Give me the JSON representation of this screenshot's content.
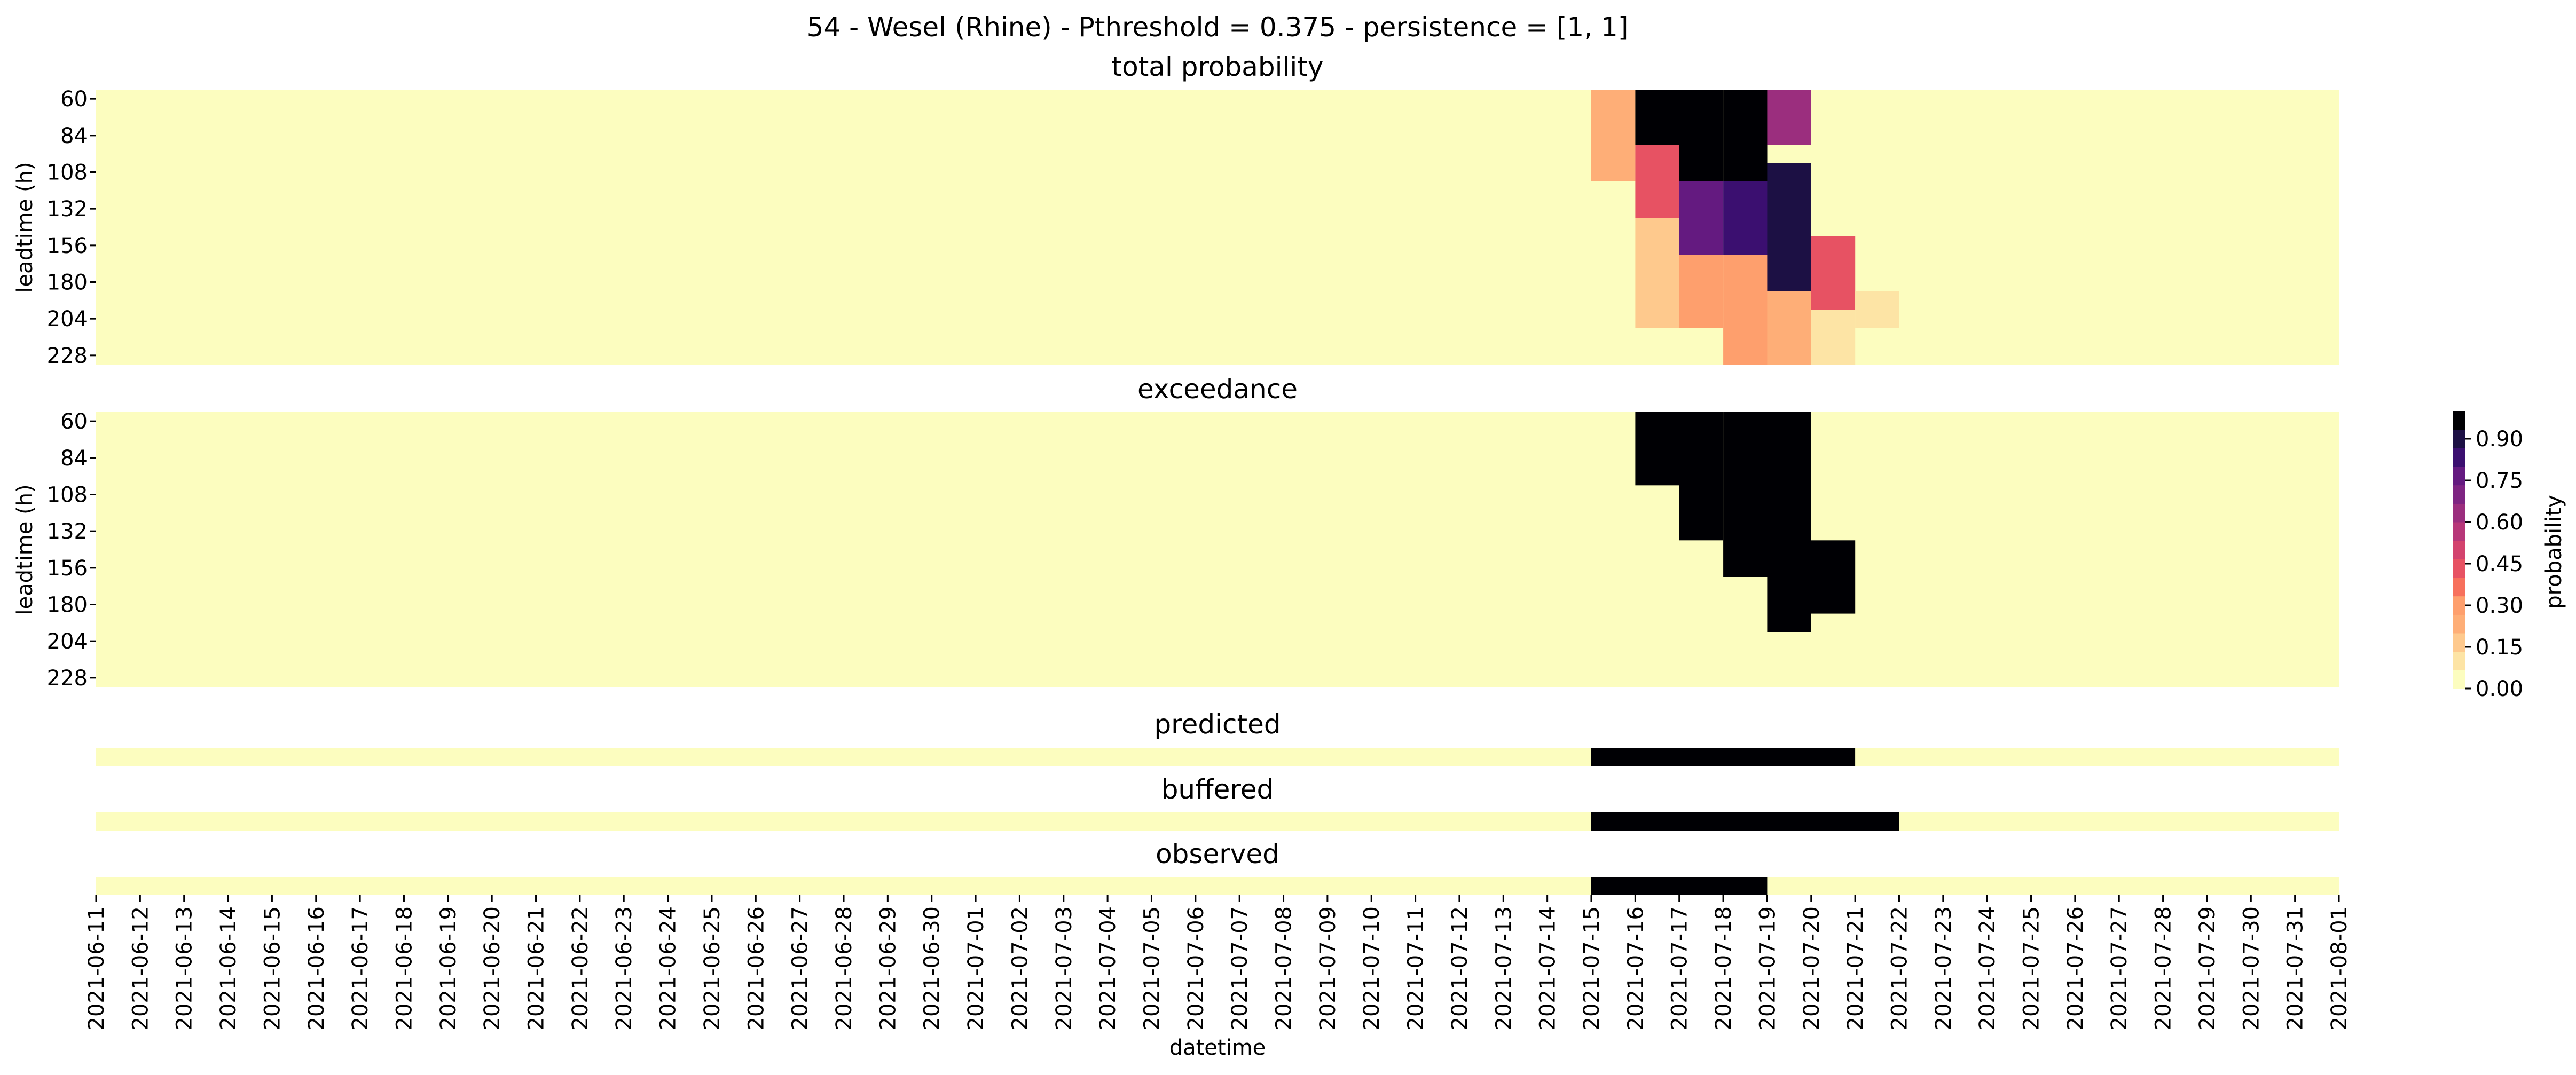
{
  "figure": {
    "suptitle": "54 - Wesel (Rhine) - Pthreshold = 0.375 - persistence = [1, 1]",
    "xlabel": "datetime",
    "ylabel": "leadtime (h)",
    "x_ticks": [
      "2021-06-11",
      "2021-06-12",
      "2021-06-13",
      "2021-06-14",
      "2021-06-15",
      "2021-06-16",
      "2021-06-17",
      "2021-06-18",
      "2021-06-19",
      "2021-06-20",
      "2021-06-21",
      "2021-06-22",
      "2021-06-23",
      "2021-06-24",
      "2021-06-25",
      "2021-06-26",
      "2021-06-27",
      "2021-06-28",
      "2021-06-29",
      "2021-06-30",
      "2021-07-01",
      "2021-07-02",
      "2021-07-03",
      "2021-07-04",
      "2021-07-05",
      "2021-07-06",
      "2021-07-07",
      "2021-07-08",
      "2021-07-09",
      "2021-07-10",
      "2021-07-11",
      "2021-07-12",
      "2021-07-13",
      "2021-07-14",
      "2021-07-15",
      "2021-07-16",
      "2021-07-17",
      "2021-07-18",
      "2021-07-19",
      "2021-07-20",
      "2021-07-21",
      "2021-07-22",
      "2021-07-23",
      "2021-07-24",
      "2021-07-25",
      "2021-07-26",
      "2021-07-27",
      "2021-07-28",
      "2021-07-29",
      "2021-07-30",
      "2021-07-31",
      "2021-08-01"
    ],
    "y_ticks": [
      "60",
      "84",
      "108",
      "132",
      "156",
      "180",
      "204",
      "228"
    ],
    "colorbar": {
      "label": "probability",
      "ticks": [
        "0.00",
        "0.15",
        "0.30",
        "0.45",
        "0.60",
        "0.75",
        "0.90"
      ],
      "tick_values": [
        0.0,
        0.15,
        0.3,
        0.45,
        0.6,
        0.75,
        0.9
      ],
      "range": [
        0,
        1
      ],
      "levels": 15,
      "colors": [
        "#fcfdbf",
        "#fde4a5",
        "#fec98d",
        "#feae77",
        "#fe9f6d",
        "#f7705c",
        "#e75263",
        "#d3436e",
        "#b73779",
        "#9b2e7e",
        "#7e2482",
        "#641a80",
        "#3b0f70",
        "#1c1044",
        "#000004"
      ]
    }
  },
  "chart_data": [
    {
      "type": "heatmap",
      "title": "total probability",
      "x_range": [
        "2021-06-11",
        "2021-08-01"
      ],
      "y_range": [
        60,
        240
      ],
      "regions": [
        {
          "date": "2021-07-15",
          "leadtimes": [
            60,
            108
          ],
          "level": 0.25
        },
        {
          "date": "2021-07-16",
          "leadtimes": [
            60,
            84
          ],
          "level": 0.95
        },
        {
          "date": "2021-07-16",
          "leadtimes": [
            96,
            132
          ],
          "level": 0.4
        },
        {
          "date": "2021-07-16",
          "leadtimes": [
            144,
            204
          ],
          "level": 0.15
        },
        {
          "date": "2021-07-17",
          "leadtimes": [
            60,
            108
          ],
          "level": 0.95
        },
        {
          "date": "2021-07-17",
          "leadtimes": [
            120,
            156
          ],
          "level": 0.75
        },
        {
          "date": "2021-07-17",
          "leadtimes": [
            168,
            204
          ],
          "level": 0.3
        },
        {
          "date": "2021-07-18",
          "leadtimes": [
            60,
            108
          ],
          "level": 0.95
        },
        {
          "date": "2021-07-18",
          "leadtimes": [
            120,
            156
          ],
          "level": 0.85
        },
        {
          "date": "2021-07-18",
          "leadtimes": [
            168,
            228
          ],
          "level": 0.3
        },
        {
          "date": "2021-07-19",
          "leadtimes": [
            60,
            84
          ],
          "level": 0.6
        },
        {
          "date": "2021-07-19",
          "leadtimes": [
            108,
            180
          ],
          "level": 0.9
        },
        {
          "date": "2021-07-19",
          "leadtimes": [
            192,
            228
          ],
          "level": 0.25
        },
        {
          "date": "2021-07-20",
          "leadtimes": [
            156,
            192
          ],
          "level": 0.45
        },
        {
          "date": "2021-07-20",
          "leadtimes": [
            204,
            228
          ],
          "level": 0.1
        },
        {
          "date": "2021-07-21",
          "leadtimes": [
            192,
            204
          ],
          "level": 0.1
        }
      ]
    },
    {
      "type": "heatmap",
      "title": "exceedance",
      "x_range": [
        "2021-06-11",
        "2021-08-01"
      ],
      "y_range": [
        60,
        240
      ],
      "regions": [
        {
          "date": "2021-07-16",
          "leadtimes": [
            60,
            96
          ],
          "value": 1
        },
        {
          "date": "2021-07-17",
          "leadtimes": [
            60,
            132
          ],
          "value": 1
        },
        {
          "date": "2021-07-18",
          "leadtimes": [
            60,
            156
          ],
          "value": 1
        },
        {
          "date": "2021-07-19",
          "leadtimes": [
            60,
            192
          ],
          "value": 1
        },
        {
          "date": "2021-07-20",
          "leadtimes": [
            144,
            180
          ],
          "value": 1
        }
      ]
    },
    {
      "type": "heatmap",
      "title": "predicted",
      "x_range": [
        "2021-06-11",
        "2021-08-01"
      ],
      "events": [
        {
          "start": "2021-07-15",
          "end": "2021-07-20",
          "value": 1
        }
      ]
    },
    {
      "type": "heatmap",
      "title": "buffered",
      "x_range": [
        "2021-06-11",
        "2021-08-01"
      ],
      "events": [
        {
          "start": "2021-07-15",
          "end": "2021-07-21",
          "value": 1
        }
      ]
    },
    {
      "type": "heatmap",
      "title": "observed",
      "x_range": [
        "2021-06-11",
        "2021-08-01"
      ],
      "events": [
        {
          "start": "2021-07-15",
          "end": "2021-07-18",
          "value": 1
        }
      ]
    }
  ]
}
